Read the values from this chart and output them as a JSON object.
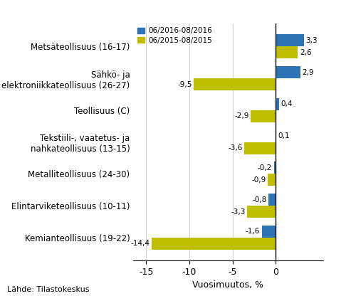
{
  "categories": [
    "Kemianteollisuus (19-22)",
    "Elintarviketeollisuus (10-11)",
    "Metalliteollisuus (24-30)",
    "Tekstiili-, vaatetus- ja\nnahkateollisuus (13-15)",
    "Teollisuus (C)",
    "Sähkö- ja\nelektroniikkateollisuus (26-27)",
    "Metsäteollisuus (16-17)"
  ],
  "values_2016": [
    -1.6,
    -0.8,
    -0.2,
    0.1,
    0.4,
    2.9,
    3.3
  ],
  "values_2015": [
    -14.4,
    -3.3,
    -0.9,
    -3.6,
    -2.9,
    -9.5,
    2.6
  ],
  "color_2016": "#2E74B5",
  "color_2015": "#BFBF00",
  "legend_2016": "06/2016-08/2016",
  "legend_2015": "06/2015-08/2015",
  "xlabel": "Vuosimuutos, %",
  "xlim": [
    -16.5,
    5.5
  ],
  "xticks": [
    -15,
    -10,
    -5,
    0
  ],
  "footer": "Lähde: Tilastokeskus",
  "bar_height": 0.38
}
